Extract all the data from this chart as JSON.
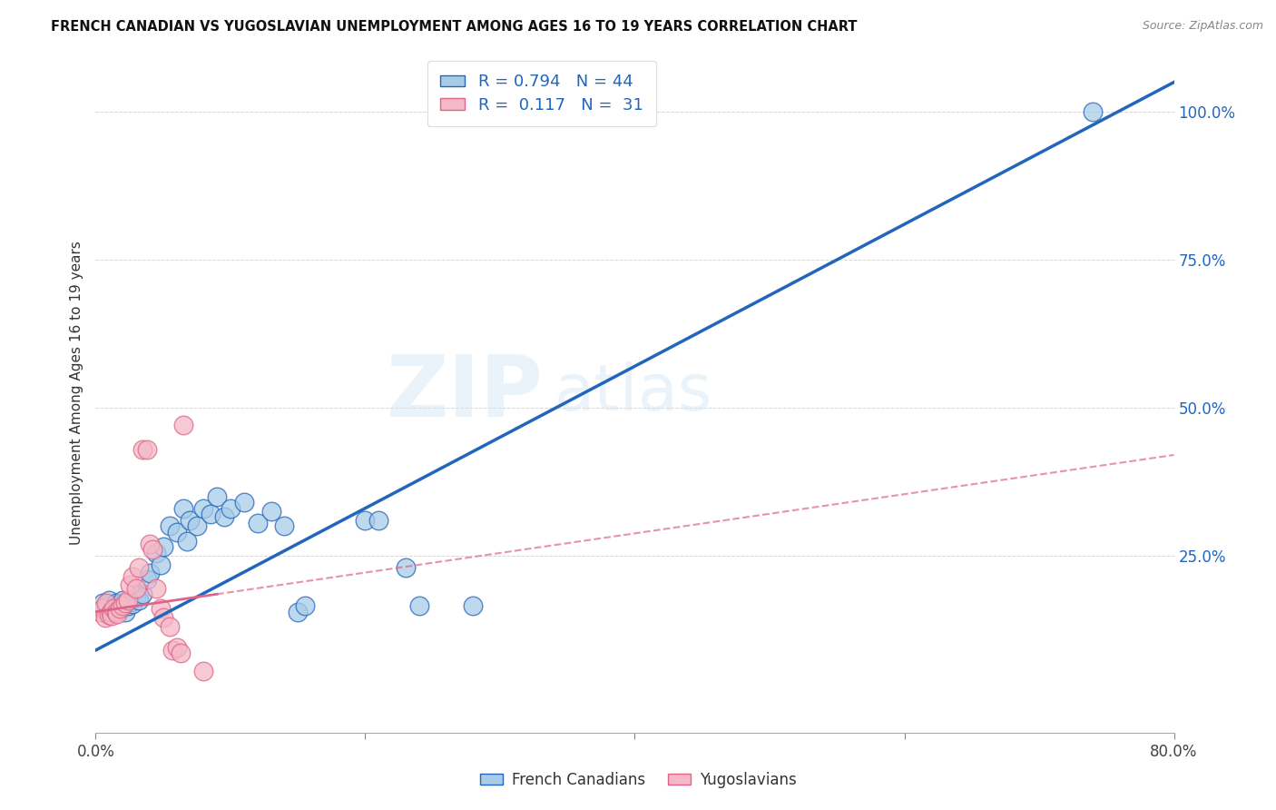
{
  "title": "FRENCH CANADIAN VS YUGOSLAVIAN UNEMPLOYMENT AMONG AGES 16 TO 19 YEARS CORRELATION CHART",
  "source": "Source: ZipAtlas.com",
  "ylabel": "Unemployment Among Ages 16 to 19 years",
  "xlim": [
    0.0,
    0.8
  ],
  "ylim": [
    -0.05,
    1.1
  ],
  "x_ticks": [
    0.0,
    0.2,
    0.4,
    0.6,
    0.8
  ],
  "x_tick_labels": [
    "0.0%",
    "",
    "",
    "",
    "80.0%"
  ],
  "y_ticks_right": [
    0.0,
    0.25,
    0.5,
    0.75,
    1.0
  ],
  "y_tick_labels_right": [
    "",
    "25.0%",
    "50.0%",
    "75.0%",
    "100.0%"
  ],
  "blue_color": "#a8cce8",
  "pink_color": "#f5b8c8",
  "blue_line_color": "#2266bb",
  "pink_line_color": "#dd6688",
  "watermark_zip": "ZIP",
  "watermark_atlas": "atlas",
  "background_color": "#ffffff",
  "fc_scatter": [
    [
      0.005,
      0.17
    ],
    [
      0.008,
      0.165
    ],
    [
      0.01,
      0.175
    ],
    [
      0.012,
      0.155
    ],
    [
      0.013,
      0.16
    ],
    [
      0.015,
      0.17
    ],
    [
      0.016,
      0.163
    ],
    [
      0.018,
      0.168
    ],
    [
      0.02,
      0.175
    ],
    [
      0.022,
      0.155
    ],
    [
      0.024,
      0.165
    ],
    [
      0.025,
      0.172
    ],
    [
      0.027,
      0.168
    ],
    [
      0.03,
      0.18
    ],
    [
      0.032,
      0.175
    ],
    [
      0.035,
      0.185
    ],
    [
      0.038,
      0.21
    ],
    [
      0.04,
      0.22
    ],
    [
      0.045,
      0.255
    ],
    [
      0.048,
      0.235
    ],
    [
      0.05,
      0.265
    ],
    [
      0.055,
      0.3
    ],
    [
      0.06,
      0.29
    ],
    [
      0.065,
      0.33
    ],
    [
      0.068,
      0.275
    ],
    [
      0.07,
      0.31
    ],
    [
      0.075,
      0.3
    ],
    [
      0.08,
      0.33
    ],
    [
      0.085,
      0.32
    ],
    [
      0.09,
      0.35
    ],
    [
      0.095,
      0.315
    ],
    [
      0.1,
      0.33
    ],
    [
      0.11,
      0.34
    ],
    [
      0.12,
      0.305
    ],
    [
      0.13,
      0.325
    ],
    [
      0.14,
      0.3
    ],
    [
      0.15,
      0.155
    ],
    [
      0.155,
      0.165
    ],
    [
      0.2,
      0.31
    ],
    [
      0.21,
      0.31
    ],
    [
      0.23,
      0.23
    ],
    [
      0.24,
      0.165
    ],
    [
      0.28,
      0.165
    ],
    [
      0.74,
      1.0
    ]
  ],
  "yugo_scatter": [
    [
      0.003,
      0.155
    ],
    [
      0.005,
      0.16
    ],
    [
      0.007,
      0.145
    ],
    [
      0.008,
      0.17
    ],
    [
      0.01,
      0.15
    ],
    [
      0.011,
      0.155
    ],
    [
      0.012,
      0.148
    ],
    [
      0.013,
      0.16
    ],
    [
      0.015,
      0.155
    ],
    [
      0.016,
      0.152
    ],
    [
      0.018,
      0.16
    ],
    [
      0.02,
      0.165
    ],
    [
      0.022,
      0.17
    ],
    [
      0.024,
      0.175
    ],
    [
      0.025,
      0.2
    ],
    [
      0.027,
      0.215
    ],
    [
      0.03,
      0.195
    ],
    [
      0.032,
      0.23
    ],
    [
      0.035,
      0.43
    ],
    [
      0.038,
      0.43
    ],
    [
      0.04,
      0.27
    ],
    [
      0.042,
      0.26
    ],
    [
      0.045,
      0.195
    ],
    [
      0.048,
      0.16
    ],
    [
      0.05,
      0.145
    ],
    [
      0.055,
      0.13
    ],
    [
      0.057,
      0.09
    ],
    [
      0.06,
      0.095
    ],
    [
      0.063,
      0.085
    ],
    [
      0.065,
      0.47
    ],
    [
      0.08,
      0.055
    ]
  ],
  "fc_line": {
    "x0": 0.0,
    "y0": 0.09,
    "x1": 0.8,
    "y1": 1.05
  },
  "yugo_line": {
    "x0": 0.0,
    "y0": 0.155,
    "x1": 0.8,
    "y1": 0.42
  }
}
